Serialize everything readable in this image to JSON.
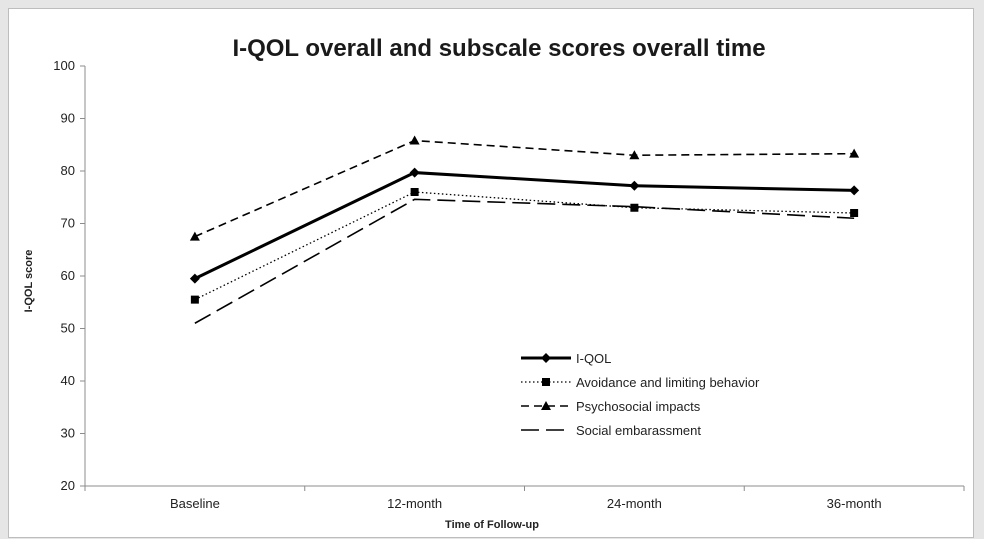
{
  "chart_data": {
    "type": "line",
    "title": "I-QOL overall and subscale scores overall time",
    "xlabel": "Time  of Follow-up",
    "ylabel": "I-QOL score",
    "categories": [
      "Baseline",
      "12-month",
      "24-month",
      "36-month"
    ],
    "ylim": [
      20,
      100
    ],
    "yticks": [
      20,
      30,
      40,
      50,
      60,
      70,
      80,
      90,
      100
    ],
    "grid": false,
    "legend_position": "lower-right",
    "series": [
      {
        "name": "I-QOL",
        "values": [
          59.5,
          79.7,
          77.2,
          76.3
        ],
        "marker": "diamond",
        "line_style": "solid-thick",
        "color": "#000000"
      },
      {
        "name": "Avoidance and limiting behavior",
        "values": [
          55.5,
          76.0,
          73.0,
          72.0
        ],
        "marker": "square",
        "line_style": "dotted",
        "color": "#000000"
      },
      {
        "name": "Psychosocial impacts",
        "values": [
          67.5,
          85.8,
          83.0,
          83.3
        ],
        "marker": "triangle",
        "line_style": "dashed",
        "color": "#000000"
      },
      {
        "name": "Social embarassment",
        "values": [
          51.0,
          74.6,
          73.2,
          71.0
        ],
        "marker": "none",
        "line_style": "long-dash",
        "color": "#000000"
      }
    ]
  }
}
